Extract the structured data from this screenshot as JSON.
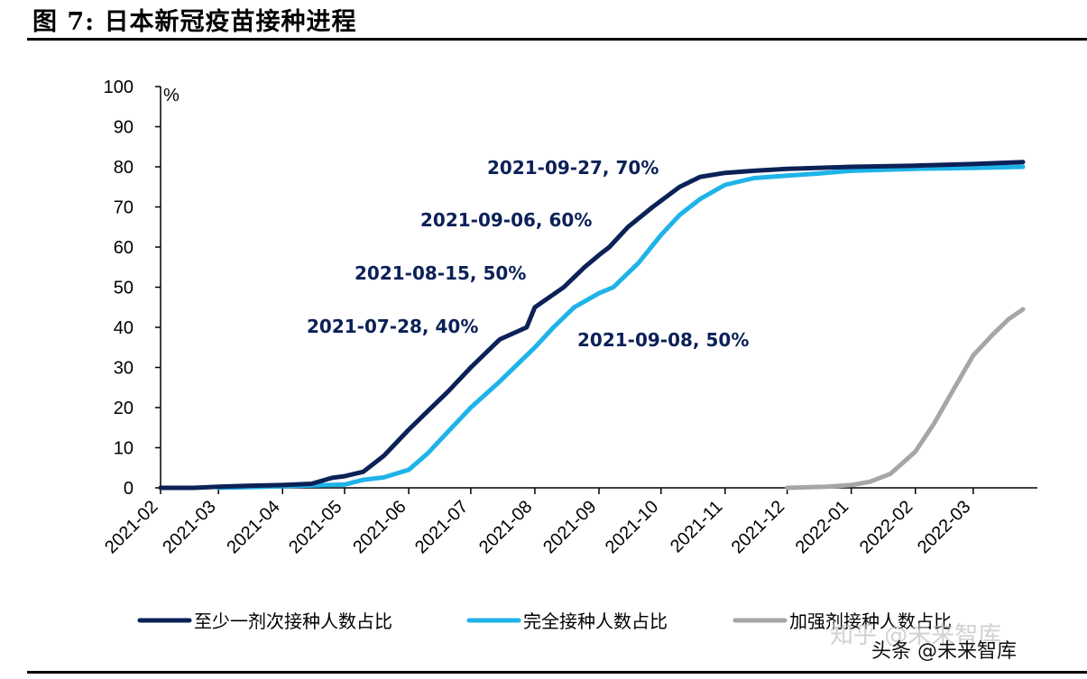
{
  "figure": {
    "title": "图 7:  日本新冠疫苗接种进程"
  },
  "watermark": {
    "line1": "知乎 @未来智库",
    "line2": "头条 @未来智库"
  },
  "chart_data": {
    "type": "line",
    "ylabel": "%",
    "xlabel": "",
    "ylim": [
      0,
      100
    ],
    "yticks": [
      0,
      10,
      20,
      30,
      40,
      50,
      60,
      70,
      80,
      90,
      100
    ],
    "x_ticks": [
      "2021-02",
      "2021-03",
      "2021-04",
      "2021-05",
      "2021-06",
      "2021-07",
      "2021-08",
      "2021-09",
      "2021-10",
      "2021-11",
      "2021-12",
      "2022-01",
      "2022-02",
      "2022-03"
    ],
    "legend_position": "bottom",
    "grid": false,
    "series": [
      {
        "name": "至少一剂次接种人数占比",
        "color": "#0b2157",
        "points": [
          [
            "2021-02-01",
            0
          ],
          [
            "2021-02-17",
            0
          ],
          [
            "2021-03-01",
            0.3
          ],
          [
            "2021-03-15",
            0.5
          ],
          [
            "2021-04-01",
            0.7
          ],
          [
            "2021-04-15",
            1.0
          ],
          [
            "2021-04-25",
            2.5
          ],
          [
            "2021-05-01",
            2.9
          ],
          [
            "2021-05-10",
            4.0
          ],
          [
            "2021-05-20",
            8
          ],
          [
            "2021-06-01",
            14.5
          ],
          [
            "2021-06-10",
            19
          ],
          [
            "2021-06-20",
            24
          ],
          [
            "2021-07-01",
            30
          ],
          [
            "2021-07-15",
            37
          ],
          [
            "2021-07-28",
            40
          ],
          [
            "2021-08-01",
            45
          ],
          [
            "2021-08-15",
            50
          ],
          [
            "2021-08-25",
            55
          ],
          [
            "2021-09-01",
            58
          ],
          [
            "2021-09-06",
            60
          ],
          [
            "2021-09-15",
            65
          ],
          [
            "2021-09-27",
            70
          ],
          [
            "2021-10-10",
            75
          ],
          [
            "2021-10-20",
            77.5
          ],
          [
            "2021-11-01",
            78.5
          ],
          [
            "2021-11-15",
            79
          ],
          [
            "2021-12-01",
            79.5
          ],
          [
            "2021-12-15",
            79.7
          ],
          [
            "2022-01-01",
            80
          ],
          [
            "2022-02-01",
            80.3
          ],
          [
            "2022-03-01",
            80.7
          ],
          [
            "2022-03-25",
            81.2
          ]
        ]
      },
      {
        "name": "完全接种人数占比",
        "color": "#1fb3e8",
        "points": [
          [
            "2021-03-01",
            0
          ],
          [
            "2021-04-01",
            0.4
          ],
          [
            "2021-05-01",
            0.8
          ],
          [
            "2021-05-10",
            2
          ],
          [
            "2021-05-20",
            2.6
          ],
          [
            "2021-06-01",
            4.5
          ],
          [
            "2021-06-10",
            8.5
          ],
          [
            "2021-06-20",
            14
          ],
          [
            "2021-07-01",
            20
          ],
          [
            "2021-07-15",
            26.5
          ],
          [
            "2021-08-01",
            35
          ],
          [
            "2021-08-10",
            40
          ],
          [
            "2021-08-20",
            45
          ],
          [
            "2021-09-01",
            48.5
          ],
          [
            "2021-09-08",
            50
          ],
          [
            "2021-09-20",
            56
          ],
          [
            "2021-10-01",
            63
          ],
          [
            "2021-10-10",
            68
          ],
          [
            "2021-10-20",
            72
          ],
          [
            "2021-11-01",
            75.5
          ],
          [
            "2021-11-15",
            77.2
          ],
          [
            "2021-12-01",
            77.8
          ],
          [
            "2021-12-15",
            78.3
          ],
          [
            "2022-01-01",
            79
          ],
          [
            "2022-02-01",
            79.5
          ],
          [
            "2022-03-01",
            79.7
          ],
          [
            "2022-03-25",
            80
          ]
        ]
      },
      {
        "name": "加强剂接种人数占比",
        "color": "#a6a6a6",
        "points": [
          [
            "2021-12-01",
            0
          ],
          [
            "2021-12-20",
            0.3
          ],
          [
            "2022-01-01",
            0.7
          ],
          [
            "2022-01-10",
            1.5
          ],
          [
            "2022-01-20",
            3.5
          ],
          [
            "2022-02-01",
            9
          ],
          [
            "2022-02-10",
            16
          ],
          [
            "2022-02-20",
            25
          ],
          [
            "2022-03-01",
            33
          ],
          [
            "2022-03-10",
            38
          ],
          [
            "2022-03-18",
            42
          ],
          [
            "2022-03-25",
            44.5
          ]
        ]
      }
    ],
    "annotations": [
      {
        "text": "2021-09-27, 70%",
        "series": 0
      },
      {
        "text": "2021-09-06, 60%",
        "series": 0
      },
      {
        "text": "2021-08-15, 50%",
        "series": 0
      },
      {
        "text": "2021-07-28, 40%",
        "series": 0
      },
      {
        "text": "2021-09-08, 50%",
        "series": 1
      }
    ]
  }
}
